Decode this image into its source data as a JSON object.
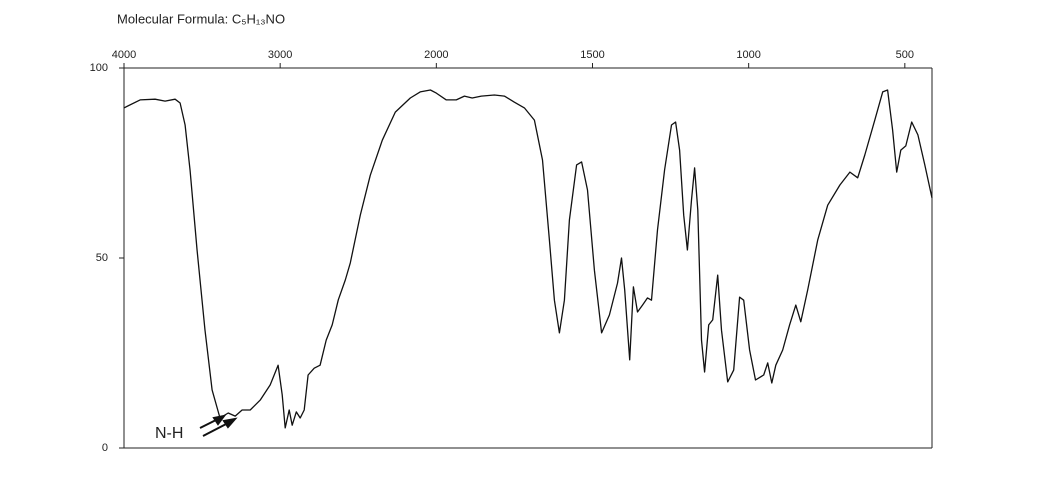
{
  "chart_data": {
    "type": "line",
    "title": "Molecular Formula: C₅H₁₃NO",
    "annotation": "N-H",
    "color": "#111111",
    "xlim": [
      4000,
      413
    ],
    "ylim": [
      0,
      100
    ],
    "xticks": [
      4000,
      3000,
      2000,
      1500,
      1000,
      500
    ],
    "yticks": [
      0,
      50,
      100
    ],
    "x": [
      4000,
      3897,
      3801,
      3737,
      3673,
      3641,
      3609,
      3577,
      3532,
      3481,
      3436,
      3385,
      3333,
      3288,
      3244,
      3192,
      3128,
      3064,
      3013,
      2987,
      2968,
      2942,
      2923,
      2897,
      2872,
      2846,
      2821,
      2782,
      2744,
      2705,
      2667,
      2628,
      2583,
      2551,
      2487,
      2423,
      2346,
      2263,
      2167,
      2103,
      2038,
      2000,
      1968,
      1936,
      1910,
      1885,
      1856,
      1814,
      1782,
      1750,
      1718,
      1686,
      1660,
      1638,
      1622,
      1606,
      1590,
      1574,
      1551,
      1535,
      1516,
      1494,
      1471,
      1446,
      1420,
      1407,
      1397,
      1381,
      1369,
      1356,
      1340,
      1324,
      1311,
      1292,
      1269,
      1247,
      1234,
      1221,
      1208,
      1196,
      1183,
      1173,
      1163,
      1151,
      1141,
      1128,
      1115,
      1099,
      1087,
      1067,
      1048,
      1029,
      1016,
      997,
      978,
      952,
      939,
      926,
      913,
      891,
      869,
      849,
      833,
      811,
      779,
      747,
      708,
      676,
      651,
      628,
      596,
      571,
      555,
      539,
      526,
      513,
      497,
      478,
      458,
      436,
      413
    ],
    "values": [
      89.5,
      91.6,
      91.8,
      91.3,
      91.8,
      90.8,
      85,
      73,
      52,
      31,
      15.3,
      7.9,
      9.2,
      8.4,
      10,
      10,
      12.6,
      16.6,
      21.8,
      14,
      5.3,
      10,
      6,
      9.5,
      7.9,
      10,
      19.2,
      21,
      21.8,
      28.4,
      32.4,
      39,
      44.2,
      48.7,
      61.3,
      71.8,
      81,
      88.4,
      92.1,
      93.7,
      94.2,
      93.4,
      91.6,
      91.6,
      92.6,
      92.1,
      92.6,
      92.9,
      92.6,
      91,
      89.5,
      86.3,
      75.8,
      54.7,
      38.9,
      30.3,
      38.9,
      60,
      74.5,
      75.3,
      67.9,
      46.8,
      30.3,
      35,
      43.4,
      50,
      41.6,
      23.2,
      42.4,
      35.8,
      37.6,
      39.5,
      38.9,
      57.4,
      73.2,
      85,
      85.8,
      78.4,
      61.3,
      52.1,
      65.3,
      73.7,
      62.6,
      28.4,
      20,
      32.4,
      33.7,
      45.5,
      31,
      17.4,
      20.5,
      39.7,
      38.9,
      25.8,
      17.9,
      19.2,
      22.4,
      17.1,
      21.8,
      25.8,
      32.4,
      37.6,
      33.2,
      41.6,
      54.7,
      63.9,
      69.2,
      72.6,
      71.1,
      77.1,
      86.3,
      93.7,
      94.2,
      83.7,
      72.6,
      78.4,
      79.5,
      85.8,
      82.4,
      74.5,
      65.8
    ]
  }
}
